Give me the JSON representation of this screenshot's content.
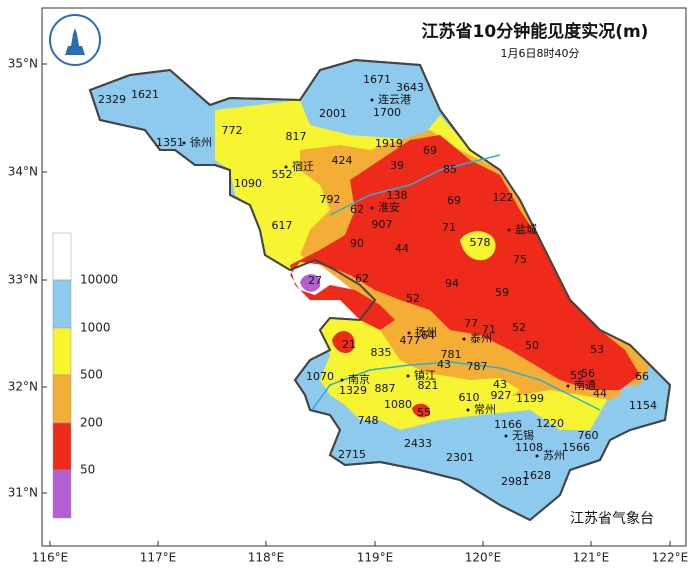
{
  "title": "江苏省10分钟能见度实况(m)",
  "subtitle": "1月6日8时40分",
  "credit": "江苏省气象台",
  "lat_labels": [
    "35°N",
    "34°N",
    "33°N",
    "32°N",
    "31°N"
  ],
  "lon_labels": [
    "116°E",
    "117°E",
    "118°E",
    "119°E",
    "120°E",
    "121°E",
    "122°E"
  ],
  "legend_labels": [
    "10000",
    "1000",
    "500",
    "200",
    "50"
  ],
  "cities": [
    "连云港",
    "徐州",
    "宿迁",
    "淮安",
    "盐城",
    "扬州",
    "泰州",
    "南京",
    "镇江",
    "南通",
    "常州",
    "无锡",
    "苏州"
  ],
  "stations": [
    2329,
    1621,
    1351,
    772,
    817,
    1671,
    3643,
    2001,
    1700,
    1919,
    424,
    552,
    1090,
    39,
    69,
    85,
    792,
    62,
    138,
    69,
    122,
    617,
    907,
    71,
    578,
    90,
    44,
    75,
    27,
    62,
    94,
    59,
    52,
    77,
    71,
    52,
    64,
    477,
    21,
    835,
    781,
    50,
    53,
    43,
    787,
    1070,
    1329,
    887,
    821,
    43,
    55,
    56,
    66,
    610,
    927,
    1199,
    44,
    1080,
    55,
    748,
    1154,
    1166,
    1220,
    760,
    2433,
    1108,
    1566,
    2715,
    2301,
    2981,
    1628
  ]
}
